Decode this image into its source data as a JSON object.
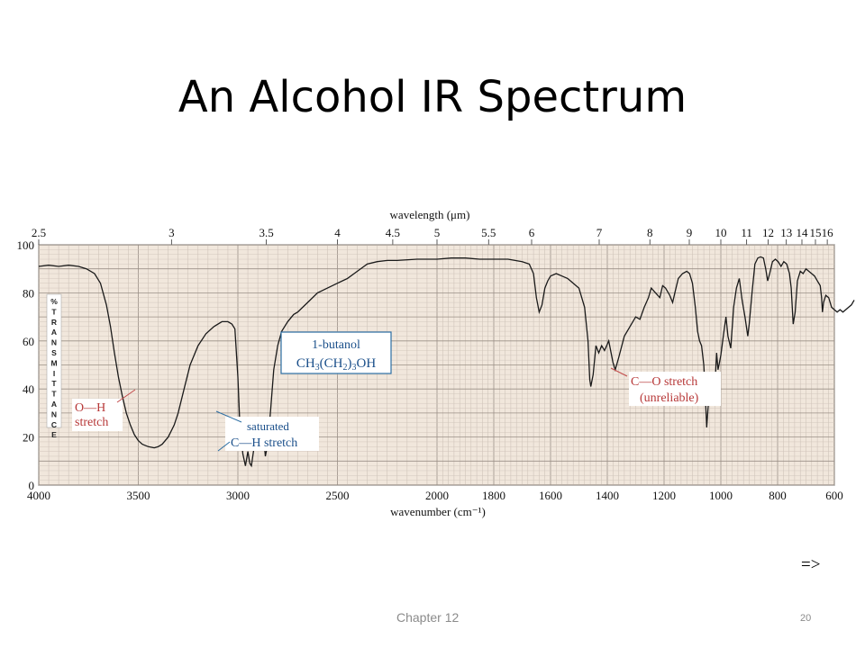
{
  "slide": {
    "title": "An Alcohol IR Spectrum",
    "next_arrow": "=>",
    "footer_chapter": "Chapter 12",
    "page_number": "20"
  },
  "chart_data": {
    "type": "line",
    "title": "",
    "xlabel": "wavenumber (cm⁻¹)",
    "x2label": "wavelength (μm)",
    "ylabel": "% TRANSMITTANCE",
    "ylim": [
      0,
      100
    ],
    "yticks": [
      0,
      20,
      40,
      60,
      80,
      100
    ],
    "xticks_wavenumber": [
      4000,
      3500,
      3000,
      2500,
      2000,
      1800,
      1600,
      1400,
      1200,
      1000,
      800,
      600
    ],
    "xticks_wavelength": [
      "2.5",
      "3",
      "3.5",
      "4",
      "4.5",
      "5",
      "5.5",
      "6",
      "7",
      "8",
      "9",
      "10",
      "11",
      "12",
      "13",
      "14",
      "15",
      "16"
    ],
    "grid": true,
    "compound": {
      "name": "1-butanol",
      "formula": "CH3(CH2)3OH",
      "formula_parts": [
        "CH",
        "3",
        "(CH",
        "2",
        ")",
        "3",
        "OH"
      ]
    },
    "annotations": [
      {
        "text": [
          "O—H",
          "stretch"
        ],
        "at_wavenumber": 3350,
        "at_transmittance": 38
      },
      {
        "text": [
          "saturated",
          "C—H stretch"
        ],
        "at_wavenumber": 2900,
        "at_transmittance": 27
      },
      {
        "text": [
          "C—O stretch",
          "(unreliable)"
        ],
        "at_wavenumber": 1060,
        "at_transmittance": 46
      }
    ],
    "series": [
      {
        "points": [
          [
            4000,
            91
          ],
          [
            3950,
            91.5
          ],
          [
            3900,
            91
          ],
          [
            3850,
            91.5
          ],
          [
            3800,
            91
          ],
          [
            3760,
            90
          ],
          [
            3720,
            88
          ],
          [
            3690,
            84
          ],
          [
            3660,
            75
          ],
          [
            3640,
            66
          ],
          [
            3620,
            55
          ],
          [
            3600,
            45
          ],
          [
            3580,
            37
          ],
          [
            3560,
            30
          ],
          [
            3540,
            25
          ],
          [
            3520,
            21
          ],
          [
            3500,
            18.5
          ],
          [
            3480,
            17
          ],
          [
            3450,
            16
          ],
          [
            3420,
            15.5
          ],
          [
            3400,
            16
          ],
          [
            3380,
            17
          ],
          [
            3350,
            20
          ],
          [
            3320,
            25
          ],
          [
            3300,
            30
          ],
          [
            3270,
            40
          ],
          [
            3240,
            50
          ],
          [
            3200,
            58
          ],
          [
            3160,
            63
          ],
          [
            3120,
            66
          ],
          [
            3080,
            68
          ],
          [
            3050,
            68
          ],
          [
            3030,
            67
          ],
          [
            3015,
            65
          ],
          [
            3000,
            45
          ],
          [
            2990,
            25
          ],
          [
            2975,
            13
          ],
          [
            2962,
            8
          ],
          [
            2950,
            14
          ],
          [
            2940,
            9
          ],
          [
            2932,
            8
          ],
          [
            2920,
            15
          ],
          [
            2905,
            18
          ],
          [
            2890,
            22
          ],
          [
            2875,
            24
          ],
          [
            2862,
            12
          ],
          [
            2850,
            17
          ],
          [
            2835,
            32
          ],
          [
            2820,
            48
          ],
          [
            2800,
            58
          ],
          [
            2780,
            64
          ],
          [
            2750,
            68
          ],
          [
            2720,
            71
          ],
          [
            2700,
            72
          ],
          [
            2650,
            76
          ],
          [
            2600,
            80
          ],
          [
            2550,
            82
          ],
          [
            2500,
            84
          ],
          [
            2450,
            86
          ],
          [
            2400,
            89
          ],
          [
            2350,
            92
          ],
          [
            2300,
            93
          ],
          [
            2250,
            93.5
          ],
          [
            2200,
            93.5
          ],
          [
            2100,
            94
          ],
          [
            2000,
            94
          ],
          [
            1950,
            94.5
          ],
          [
            1900,
            94.5
          ],
          [
            1850,
            94
          ],
          [
            1800,
            94
          ],
          [
            1750,
            94
          ],
          [
            1700,
            93
          ],
          [
            1675,
            92
          ],
          [
            1660,
            88
          ],
          [
            1650,
            78
          ],
          [
            1640,
            72
          ],
          [
            1630,
            75
          ],
          [
            1620,
            82
          ],
          [
            1610,
            85
          ],
          [
            1600,
            87
          ],
          [
            1580,
            88
          ],
          [
            1560,
            87
          ],
          [
            1540,
            86
          ],
          [
            1520,
            84
          ],
          [
            1500,
            82
          ],
          [
            1480,
            74
          ],
          [
            1468,
            60
          ],
          [
            1462,
            44
          ],
          [
            1458,
            41
          ],
          [
            1450,
            46
          ],
          [
            1440,
            58
          ],
          [
            1430,
            55
          ],
          [
            1420,
            58
          ],
          [
            1410,
            56
          ],
          [
            1395,
            60
          ],
          [
            1380,
            51
          ],
          [
            1372,
            48
          ],
          [
            1360,
            53
          ],
          [
            1340,
            62
          ],
          [
            1320,
            66
          ],
          [
            1300,
            70
          ],
          [
            1285,
            69
          ],
          [
            1270,
            74
          ],
          [
            1255,
            78
          ],
          [
            1245,
            82
          ],
          [
            1230,
            80
          ],
          [
            1215,
            78
          ],
          [
            1205,
            83
          ],
          [
            1195,
            82
          ],
          [
            1180,
            79
          ],
          [
            1170,
            76
          ],
          [
            1160,
            81
          ],
          [
            1150,
            86
          ],
          [
            1135,
            88
          ],
          [
            1120,
            89
          ],
          [
            1110,
            88
          ],
          [
            1100,
            84
          ],
          [
            1090,
            74
          ],
          [
            1082,
            64
          ],
          [
            1075,
            60
          ],
          [
            1068,
            58
          ],
          [
            1060,
            50
          ],
          [
            1055,
            38
          ],
          [
            1050,
            24
          ],
          [
            1045,
            32
          ],
          [
            1040,
            40
          ],
          [
            1035,
            35
          ],
          [
            1030,
            40
          ],
          [
            1025,
            33
          ],
          [
            1020,
            43
          ],
          [
            1015,
            55
          ],
          [
            1010,
            48
          ],
          [
            1000,
            54
          ],
          [
            990,
            63
          ],
          [
            982,
            70
          ],
          [
            975,
            62
          ],
          [
            965,
            57
          ],
          [
            955,
            74
          ],
          [
            945,
            82
          ],
          [
            935,
            86
          ],
          [
            925,
            77
          ],
          [
            915,
            70
          ],
          [
            905,
            62
          ],
          [
            900,
            67
          ],
          [
            890,
            80
          ],
          [
            880,
            92
          ],
          [
            870,
            94.5
          ],
          [
            860,
            95
          ],
          [
            850,
            94.5
          ],
          [
            842,
            90
          ],
          [
            835,
            85
          ],
          [
            828,
            88
          ],
          [
            818,
            93
          ],
          [
            808,
            94
          ],
          [
            798,
            93
          ],
          [
            788,
            91
          ],
          [
            778,
            93
          ],
          [
            768,
            92
          ],
          [
            758,
            88
          ],
          [
            752,
            82
          ],
          [
            745,
            67
          ],
          [
            738,
            72
          ],
          [
            730,
            85
          ],
          [
            720,
            89
          ],
          [
            710,
            88
          ],
          [
            700,
            90
          ],
          [
            690,
            89
          ],
          [
            680,
            88
          ],
          [
            670,
            87
          ],
          [
            660,
            85
          ],
          [
            650,
            83
          ],
          [
            645,
            78
          ],
          [
            642,
            72
          ],
          [
            638,
            76
          ],
          [
            630,
            79
          ],
          [
            620,
            78
          ],
          [
            610,
            74
          ],
          [
            600,
            73
          ],
          [
            590,
            72
          ],
          [
            580,
            73
          ],
          [
            570,
            72
          ],
          [
            560,
            73
          ],
          [
            550,
            74
          ],
          [
            540,
            75
          ],
          [
            530,
            77
          ]
        ]
      }
    ]
  }
}
